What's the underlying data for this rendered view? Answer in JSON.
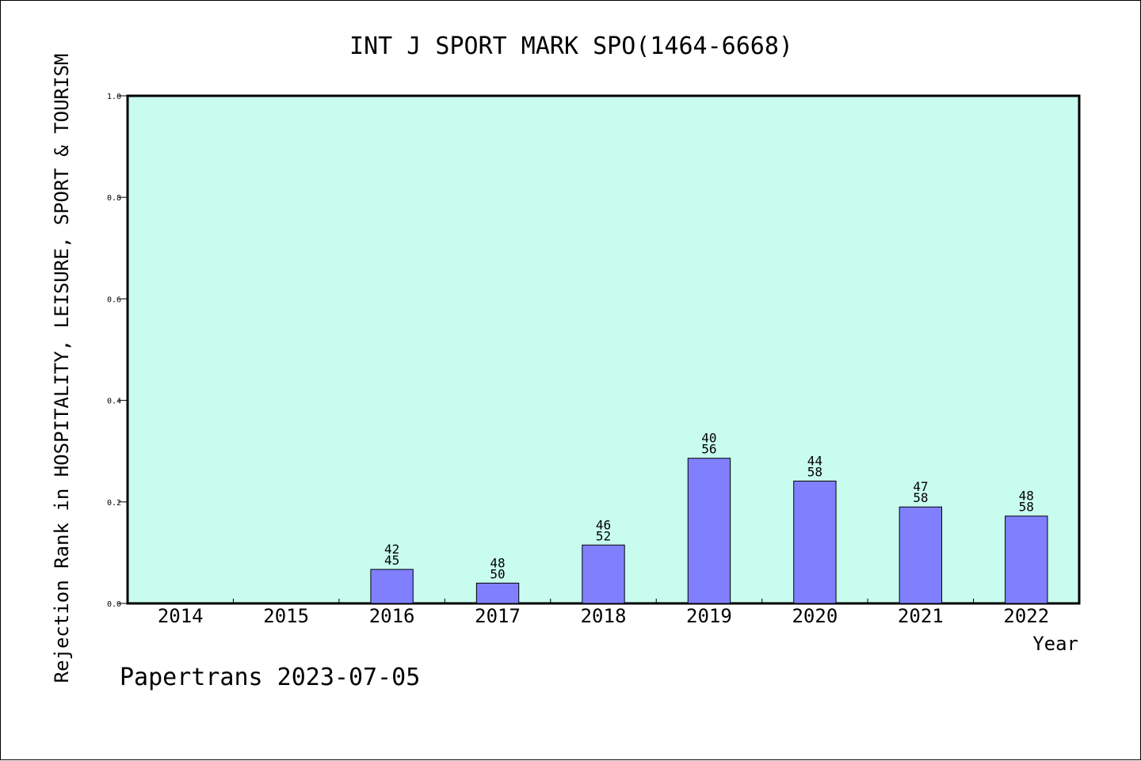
{
  "chart_data": {
    "type": "bar",
    "title": "INT J SPORT MARK SPO(1464-6668)",
    "xlabel": "Year",
    "ylabel": "Rejection Rank in HOSPITALITY, LEISURE, SPORT & TOURISM",
    "categories": [
      "2014",
      "2015",
      "2016",
      "2017",
      "2018",
      "2019",
      "2020",
      "2021",
      "2022"
    ],
    "values": [
      0,
      0,
      0.067,
      0.04,
      0.115,
      0.286,
      0.241,
      0.19,
      0.172
    ],
    "bar_labels": [
      null,
      null,
      [
        "42",
        "45"
      ],
      [
        "48",
        "50"
      ],
      [
        "46",
        "52"
      ],
      [
        "40",
        "56"
      ],
      [
        "44",
        "58"
      ],
      [
        "47",
        "58"
      ],
      [
        "48",
        "58"
      ]
    ],
    "ylim": [
      0,
      1.0
    ],
    "yticks": [
      "0.0",
      "0.2",
      "0.4",
      "0.6",
      "0.8",
      "1.0"
    ],
    "grid": false,
    "colors": {
      "plot_background": "#c8fcee",
      "bar_fill": "#8080ff",
      "bar_stroke": "#000000"
    }
  },
  "footer": "Papertrans 2023-07-05"
}
